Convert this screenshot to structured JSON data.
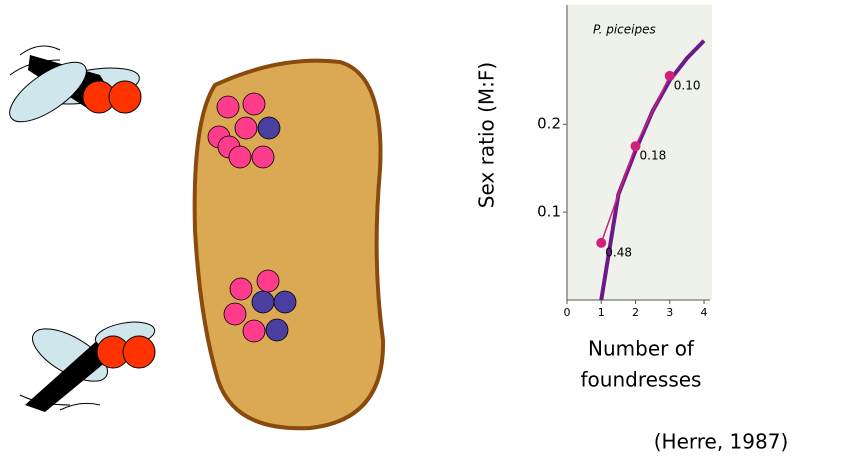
{
  "chart_data": {
    "type": "line",
    "title": "P. piceipes",
    "ylabel": "Sex ratio (M:F)",
    "xlabel": [
      "Number of",
      "foundresses"
    ],
    "source": "(Herre, 1987)",
    "xlim": [
      0,
      4
    ],
    "xticks": [
      0,
      1,
      2,
      3,
      4
    ],
    "ylim": [
      0,
      0.33
    ],
    "yticks": [
      0.1,
      0.2
    ],
    "series": [
      {
        "color": "#6a1a8a",
        "x": [
          1,
          1.5,
          2,
          2.5,
          3,
          3.5,
          4
        ],
        "values": [
          0,
          0.12,
          0.17,
          0.215,
          0.25,
          0.275,
          0.295
        ]
      },
      {
        "color": "#d0207a",
        "x": [
          1,
          2,
          3
        ],
        "values": [
          0.065,
          0.175,
          0.255
        ],
        "point_labels": [
          "0.48",
          "0.18",
          "0.10"
        ]
      }
    ]
  }
}
